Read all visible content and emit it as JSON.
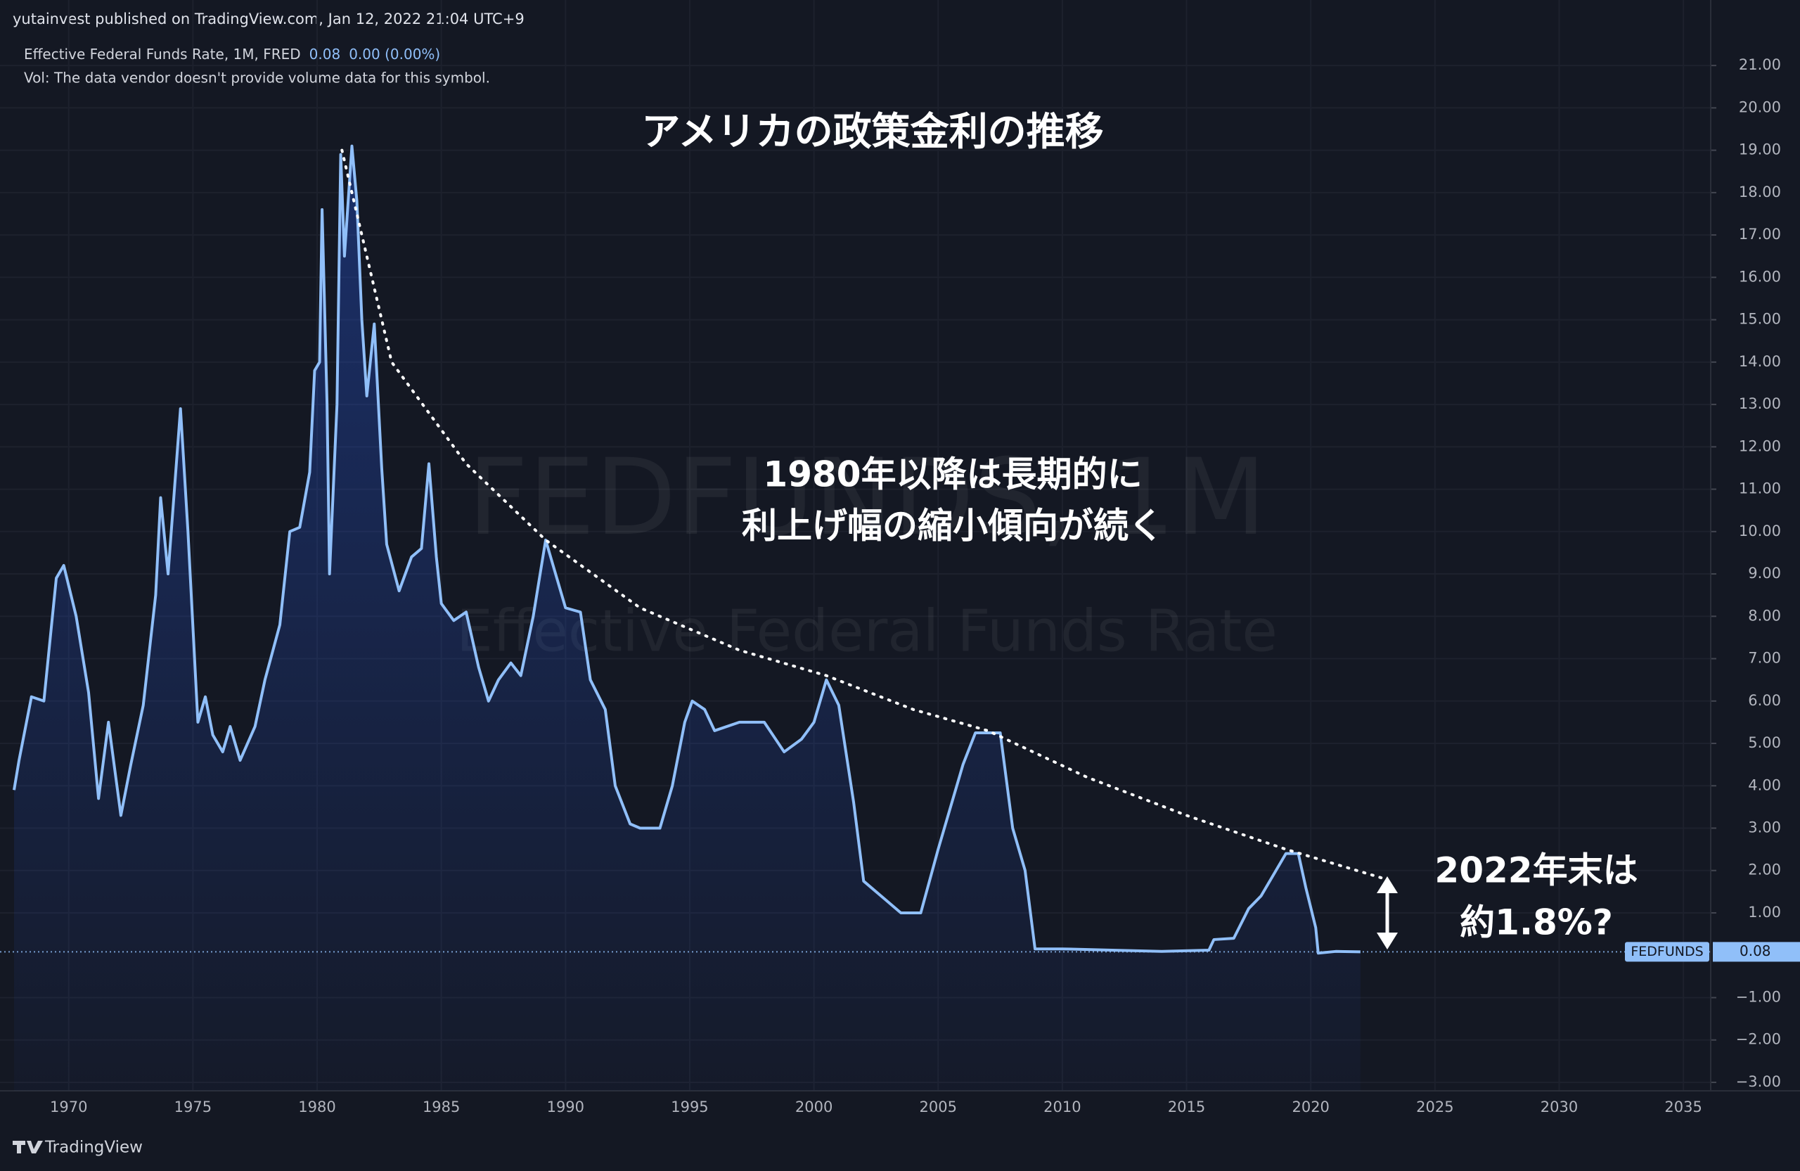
{
  "header": {
    "published": "yutainvest published on TradingView.com, Jan 12, 2022 21:04 UTC+9",
    "legend": "Effective Federal Funds Rate, 1M, FRED",
    "change": "0.00 (0.00%)",
    "vol": "Vol: The data vendor doesn't provide volume data for this symbol."
  },
  "chart_data": {
    "type": "area",
    "title": "アメリカの政策金利の推移",
    "watermark": [
      "FEDFUNDS, 1M",
      "Effective Federal Funds Rate"
    ],
    "symbol": "FEDFUNDS",
    "x": [
      1967.8,
      1968.0,
      1968.5,
      1969.0,
      1969.5,
      1969.8,
      1970.3,
      1970.8,
      1971.2,
      1971.6,
      1972.1,
      1972.5,
      1973.0,
      1973.5,
      1973.7,
      1974.0,
      1974.5,
      1974.8,
      1975.2,
      1975.5,
      1975.8,
      1976.2,
      1976.5,
      1976.9,
      1977.5,
      1977.9,
      1978.5,
      1978.9,
      1979.3,
      1979.7,
      1979.9,
      1980.1,
      1980.2,
      1980.4,
      1980.5,
      1980.8,
      1980.95,
      1981.1,
      1981.4,
      1981.6,
      1981.8,
      1982.0,
      1982.3,
      1982.6,
      1982.8,
      1983.3,
      1983.8,
      1984.2,
      1984.5,
      1984.8,
      1985.0,
      1985.5,
      1986.0,
      1986.5,
      1986.9,
      1987.3,
      1987.8,
      1988.2,
      1988.7,
      1989.2,
      1989.6,
      1990.0,
      1990.6,
      1991.0,
      1991.6,
      1992.0,
      1992.6,
      1993.0,
      1993.8,
      1994.3,
      1994.8,
      1995.1,
      1995.6,
      1996.0,
      1997.0,
      1998.0,
      1998.8,
      1999.5,
      2000.0,
      2000.5,
      2001.0,
      2001.6,
      2002.0,
      2002.9,
      2003.5,
      2004.3,
      2005.0,
      2006.0,
      2006.5,
      2007.5,
      2008.0,
      2008.5,
      2008.9,
      2010.0,
      2012.0,
      2014.0,
      2015.9,
      2016.1,
      2016.9,
      2017.5,
      2018.0,
      2018.5,
      2019.0,
      2019.5,
      2019.8,
      2020.2,
      2020.3,
      2021.0,
      2022.0
    ],
    "values": [
      3.9,
      4.6,
      6.1,
      6.0,
      8.9,
      9.2,
      8.0,
      6.2,
      3.7,
      5.5,
      3.3,
      4.5,
      5.9,
      8.5,
      10.8,
      9.0,
      12.9,
      10.0,
      5.5,
      6.1,
      5.2,
      4.8,
      5.4,
      4.6,
      5.4,
      6.5,
      7.8,
      10.0,
      10.1,
      11.4,
      13.8,
      14.0,
      17.6,
      13.0,
      9.0,
      13.0,
      18.9,
      16.5,
      19.1,
      17.8,
      15.0,
      13.2,
      14.9,
      11.5,
      9.7,
      8.6,
      9.4,
      9.6,
      11.6,
      9.4,
      8.3,
      7.9,
      8.1,
      6.8,
      6.0,
      6.5,
      6.9,
      6.6,
      8.0,
      9.8,
      9.0,
      8.2,
      8.1,
      6.5,
      5.8,
      4.0,
      3.1,
      3.0,
      3.0,
      4.0,
      5.5,
      6.0,
      5.8,
      5.3,
      5.5,
      5.5,
      4.8,
      5.1,
      5.5,
      6.5,
      5.9,
      3.6,
      1.75,
      1.3,
      1.0,
      1.0,
      2.5,
      4.5,
      5.25,
      5.25,
      3.0,
      2.0,
      0.15,
      0.15,
      0.12,
      0.09,
      0.12,
      0.37,
      0.4,
      1.1,
      1.4,
      1.9,
      2.4,
      2.4,
      1.6,
      0.65,
      0.05,
      0.09,
      0.08
    ],
    "color": "#90bff9",
    "xlim": [
      1967.8,
      2036.1
    ],
    "xticks": [
      1970,
      1975,
      1980,
      1985,
      1990,
      1995,
      2000,
      2005,
      2010,
      2015,
      2020,
      2025,
      2030,
      2035
    ],
    "ylim": [
      -3.2,
      21.6
    ],
    "yticks": [
      {
        "value": 21,
        "label": "21.00"
      },
      {
        "value": 20,
        "label": "20.00"
      },
      {
        "value": 19,
        "label": "19.00"
      },
      {
        "value": 18,
        "label": "18.00"
      },
      {
        "value": 17,
        "label": "17.00"
      },
      {
        "value": 16,
        "label": "16.00"
      },
      {
        "value": 15,
        "label": "15.00"
      },
      {
        "value": 14,
        "label": "14.00"
      },
      {
        "value": 13,
        "label": "13.00"
      },
      {
        "value": 12,
        "label": "12.00"
      },
      {
        "value": 11,
        "label": "11.00"
      },
      {
        "value": 10,
        "label": "10.00"
      },
      {
        "value": 9,
        "label": "9.00"
      },
      {
        "value": 8,
        "label": "8.00"
      },
      {
        "value": 7,
        "label": "7.00"
      },
      {
        "value": 6,
        "label": "6.00"
      },
      {
        "value": 5,
        "label": "5.00"
      },
      {
        "value": 4,
        "label": "4.00"
      },
      {
        "value": 3,
        "label": "3.00"
      },
      {
        "value": 2,
        "label": "2.00"
      },
      {
        "value": 1,
        "label": "1.00"
      },
      {
        "value": -1,
        "label": "−1.00"
      },
      {
        "value": -2,
        "label": "−2.00"
      },
      {
        "value": -3,
        "label": "−3.00"
      }
    ],
    "grid": true,
    "trend": {
      "x": [
        1981.0,
        1983.0,
        1986.0,
        1989.2,
        1993.0,
        1997.0,
        2000.5,
        2004.0,
        2007.0,
        2011.0,
        2015.0,
        2019.0,
        2023.0
      ],
      "values": [
        19.0,
        14.0,
        11.6,
        9.8,
        8.2,
        7.2,
        6.6,
        5.8,
        5.3,
        4.2,
        3.3,
        2.5,
        1.8
      ]
    },
    "annotations": [
      [
        "1980年以降は長期的に",
        "利上げ幅の縮小傾向が続く"
      ],
      [
        "2022年末は",
        "約1.8%?"
      ]
    ]
  },
  "footer": {
    "brand": "TradingView"
  }
}
